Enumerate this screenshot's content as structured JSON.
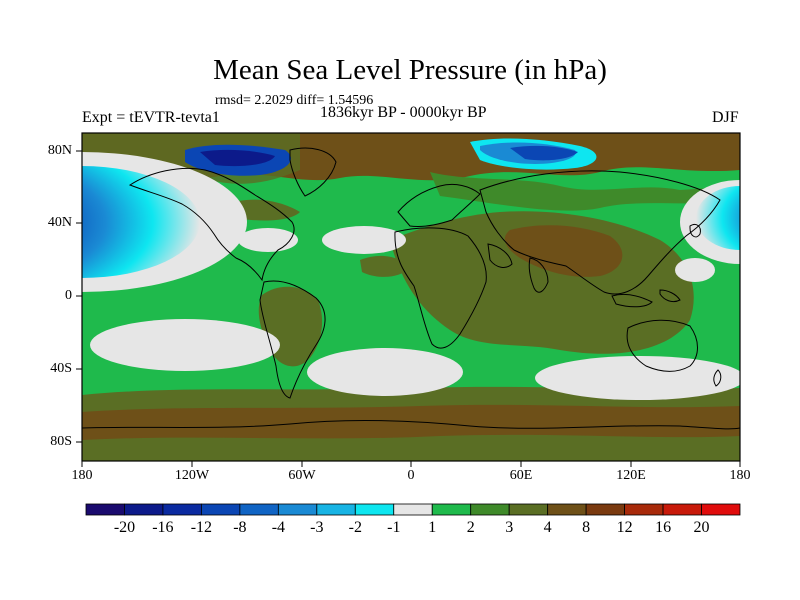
{
  "title": "Mean Sea Level Pressure (in hPa)",
  "stats": "rmsd= 2.2029 diff= 1.54596",
  "experiment": "Expt = tEVTR-tevta1",
  "period": "1836kyr BP - 0000kyr BP",
  "season": "DJF",
  "map_data": {
    "quantity": "Mean sea level pressure difference",
    "units": "hPa",
    "lon_range": [
      -180,
      180
    ],
    "lat_range": [
      -90,
      90
    ],
    "lat_labels": [
      "80N",
      "40N",
      "0",
      "40S",
      "80S"
    ],
    "lon_labels": [
      "180",
      "120W",
      "60W",
      "0",
      "60E",
      "120E",
      "180"
    ]
  },
  "colorbar": {
    "labels": [
      "-20",
      "-16",
      "-12",
      "-8",
      "-4",
      "-3",
      "-2",
      "-1",
      "1",
      "2",
      "3",
      "4",
      "8",
      "12",
      "16",
      "20"
    ],
    "colors": [
      "#1a0a6e",
      "#0c1a8a",
      "#0a2aa0",
      "#0b46b4",
      "#1064c4",
      "#1a8ad4",
      "#18b4e4",
      "#0ee6f0",
      "#e6e6e6",
      "#1fba4c",
      "#3f8a2a",
      "#5a6e24",
      "#6e5018",
      "#7a3a10",
      "#a82a0a",
      "#c81a0a",
      "#e00c0c"
    ]
  }
}
